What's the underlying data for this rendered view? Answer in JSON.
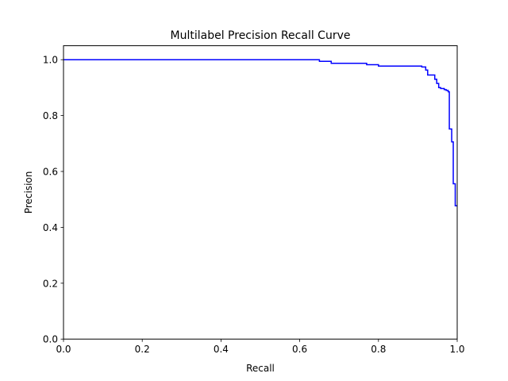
{
  "chart_data": {
    "type": "line",
    "title": "Multilabel Precision Recall Curve",
    "xlabel": "Recall",
    "ylabel": "Precision",
    "xlim": [
      0,
      1
    ],
    "ylim": [
      0,
      1.05
    ],
    "grid": false,
    "legend": "none",
    "line_color": "#0000ff",
    "drawstyle": "steps",
    "x_ticks": [
      {
        "value": 0.0,
        "label": "0.0"
      },
      {
        "value": 0.2,
        "label": "0.2"
      },
      {
        "value": 0.4,
        "label": "0.4"
      },
      {
        "value": 0.6,
        "label": "0.6"
      },
      {
        "value": 0.8,
        "label": "0.8"
      },
      {
        "value": 1.0,
        "label": "1.0"
      }
    ],
    "y_ticks": [
      {
        "value": 0.0,
        "label": "0.0"
      },
      {
        "value": 0.2,
        "label": "0.2"
      },
      {
        "value": 0.4,
        "label": "0.4"
      },
      {
        "value": 0.6,
        "label": "0.6"
      },
      {
        "value": 0.8,
        "label": "0.8"
      },
      {
        "value": 1.0,
        "label": "1.0"
      }
    ],
    "series": [
      {
        "x": [
          0.0,
          0.65,
          0.65,
          0.68,
          0.68,
          0.77,
          0.77,
          0.8,
          0.8,
          0.91,
          0.91,
          0.92,
          0.92,
          0.925,
          0.925,
          0.943,
          0.943,
          0.948,
          0.948,
          0.953,
          0.953,
          0.958,
          0.958,
          0.967,
          0.967,
          0.972,
          0.972,
          0.977,
          0.977,
          0.98,
          0.98,
          0.986,
          0.986,
          0.99,
          0.99,
          0.995,
          0.995,
          1.0
        ],
        "y": [
          1.0,
          1.0,
          0.994,
          0.994,
          0.987,
          0.987,
          0.982,
          0.982,
          0.977,
          0.977,
          0.974,
          0.974,
          0.963,
          0.963,
          0.945,
          0.945,
          0.93,
          0.93,
          0.915,
          0.915,
          0.9,
          0.9,
          0.897,
          0.897,
          0.893,
          0.893,
          0.89,
          0.89,
          0.885,
          0.885,
          0.752,
          0.752,
          0.706,
          0.706,
          0.556,
          0.556,
          0.477,
          0.477
        ]
      }
    ]
  }
}
